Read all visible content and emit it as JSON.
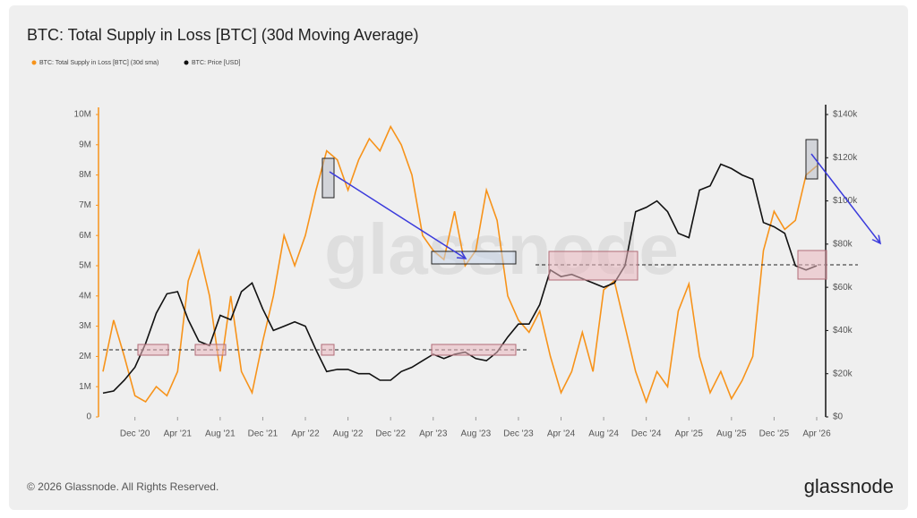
{
  "chart_data": {
    "type": "line",
    "title": "BTC: Total Supply in Loss [BTC] (30d Moving Average)",
    "x": [
      "2020-09",
      "2020-10",
      "2020-11",
      "2020-12",
      "2021-01",
      "2021-02",
      "2021-03",
      "2021-04",
      "2021-05",
      "2021-06",
      "2021-07",
      "2021-08",
      "2021-09",
      "2021-10",
      "2021-11",
      "2021-12",
      "2022-01",
      "2022-02",
      "2022-03",
      "2022-04",
      "2022-05",
      "2022-06",
      "2022-07",
      "2022-08",
      "2022-09",
      "2022-10",
      "2022-11",
      "2022-12",
      "2023-01",
      "2023-02",
      "2023-03",
      "2023-04",
      "2023-05",
      "2023-06",
      "2023-07",
      "2023-08",
      "2023-09",
      "2023-10",
      "2023-11",
      "2023-12",
      "2024-01",
      "2024-02",
      "2024-03",
      "2024-04",
      "2024-05",
      "2024-06",
      "2024-07",
      "2024-08",
      "2024-09",
      "2024-10",
      "2024-11",
      "2024-12",
      "2025-01",
      "2025-02",
      "2025-03",
      "2025-04",
      "2025-05",
      "2025-06",
      "2025-07",
      "2025-08",
      "2025-09",
      "2025-10",
      "2025-11",
      "2025-12",
      "2026-01",
      "2026-02",
      "2026-03",
      "2026-04"
    ],
    "xticks": [
      {
        "value": "2020-12",
        "label": "Dec '20"
      },
      {
        "value": "2021-04",
        "label": "Apr '21"
      },
      {
        "value": "2021-08",
        "label": "Aug '21"
      },
      {
        "value": "2021-12",
        "label": "Dec '21"
      },
      {
        "value": "2022-04",
        "label": "Apr '22"
      },
      {
        "value": "2022-08",
        "label": "Aug '22"
      },
      {
        "value": "2022-12",
        "label": "Dec '22"
      },
      {
        "value": "2023-04",
        "label": "Apr '23"
      },
      {
        "value": "2023-08",
        "label": "Aug '23"
      },
      {
        "value": "2023-12",
        "label": "Dec '23"
      },
      {
        "value": "2024-04",
        "label": "Apr '24"
      },
      {
        "value": "2024-08",
        "label": "Aug '24"
      },
      {
        "value": "2024-12",
        "label": "Dec '24"
      },
      {
        "value": "2025-04",
        "label": "Apr '25"
      },
      {
        "value": "2025-08",
        "label": "Aug '25"
      },
      {
        "value": "2025-12",
        "label": "Dec '25"
      },
      {
        "value": "2026-04",
        "label": "Apr '26"
      }
    ],
    "series": [
      {
        "name": "BTC: Total Supply in Loss [BTC] (30d sma)",
        "color": "#f7931a",
        "axis": "y",
        "values": [
          1500000,
          3200000,
          2000000,
          700000,
          500000,
          1000000,
          700000,
          1500000,
          4500000,
          5500000,
          4000000,
          1500000,
          4000000,
          1500000,
          800000,
          2500000,
          4000000,
          6000000,
          5000000,
          6000000,
          7500000,
          8800000,
          8500000,
          7500000,
          8500000,
          9200000,
          8800000,
          9600000,
          9000000,
          8000000,
          6000000,
          5500000,
          5200000,
          6800000,
          5000000,
          5500000,
          7500000,
          6500000,
          4000000,
          3200000,
          2800000,
          3500000,
          2000000,
          800000,
          1500000,
          2800000,
          1500000,
          4200000,
          4500000,
          3000000,
          1500000,
          500000,
          1500000,
          1000000,
          3500000,
          4400000,
          2000000,
          800000,
          1500000,
          600000,
          1200000,
          2000000,
          5500000,
          6800000,
          6200000,
          6500000,
          8000000,
          8300000
        ]
      },
      {
        "name": "BTC: Price [USD]",
        "color": "#111111",
        "axis": "y2",
        "values": [
          11000,
          12000,
          17000,
          23000,
          34000,
          48000,
          57000,
          58000,
          45000,
          35000,
          33000,
          47000,
          45000,
          58000,
          62000,
          50000,
          40000,
          42000,
          44000,
          42000,
          31000,
          21000,
          22000,
          22000,
          20000,
          20000,
          17000,
          17000,
          21000,
          23000,
          26000,
          29000,
          27000,
          29000,
          30000,
          27000,
          26000,
          30000,
          37000,
          43000,
          43000,
          52000,
          68000,
          65000,
          66000,
          64000,
          62000,
          60000,
          62000,
          70000,
          95000,
          97000,
          100000,
          95000,
          85000,
          83000,
          105000,
          107000,
          117000,
          115000,
          112000,
          110000,
          90000,
          88000,
          85000,
          70000,
          68000,
          70000
        ]
      }
    ],
    "ylim": [
      0,
      10000000
    ],
    "yticks": [
      0,
      {
        "value": 1000000,
        "label": "1M"
      },
      {
        "value": 2000000,
        "label": "2M"
      },
      {
        "value": 3000000,
        "label": "3M"
      },
      {
        "value": 4000000,
        "label": "4M"
      },
      {
        "value": 5000000,
        "label": "5M"
      },
      {
        "value": 6000000,
        "label": "6M"
      },
      {
        "value": 7000000,
        "label": "7M"
      },
      {
        "value": 8000000,
        "label": "8M"
      },
      {
        "value": 9000000,
        "label": "9M"
      },
      {
        "value": 10000000,
        "label": "10M"
      }
    ],
    "y2lim": [
      0,
      140000
    ],
    "y2ticks": [
      {
        "value": 0,
        "label": "$0"
      },
      {
        "value": 20000,
        "label": "$20k"
      },
      {
        "value": 40000,
        "label": "$40k"
      },
      {
        "value": 60000,
        "label": "$60k"
      },
      {
        "value": 80000,
        "label": "$80k"
      },
      {
        "value": 100000,
        "label": "$100k"
      },
      {
        "value": 120000,
        "label": "$120k"
      },
      {
        "value": 140000,
        "label": "$140k"
      }
    ],
    "watermark": "glassnode",
    "footer": "© 2026 Glassnode. All Rights Reserved.",
    "logo": "glassnode"
  }
}
